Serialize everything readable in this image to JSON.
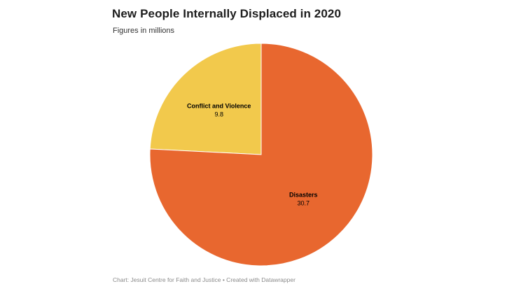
{
  "chart_data": {
    "type": "pie",
    "title": "New People Internally Displaced in 2020",
    "subtitle": "Figures in millions",
    "categories": [
      "Conflict and Violence",
      "Disasters"
    ],
    "values": [
      9.8,
      30.7
    ],
    "value_labels": [
      "9.8",
      "30.7"
    ],
    "colors": [
      "#f2c94c",
      "#e8672f"
    ],
    "start_angle_deg": 0,
    "direction": "counterclockwise",
    "source": "Chart: Jesuit Centre for Faith and Justice • Created with Datawrapper"
  }
}
